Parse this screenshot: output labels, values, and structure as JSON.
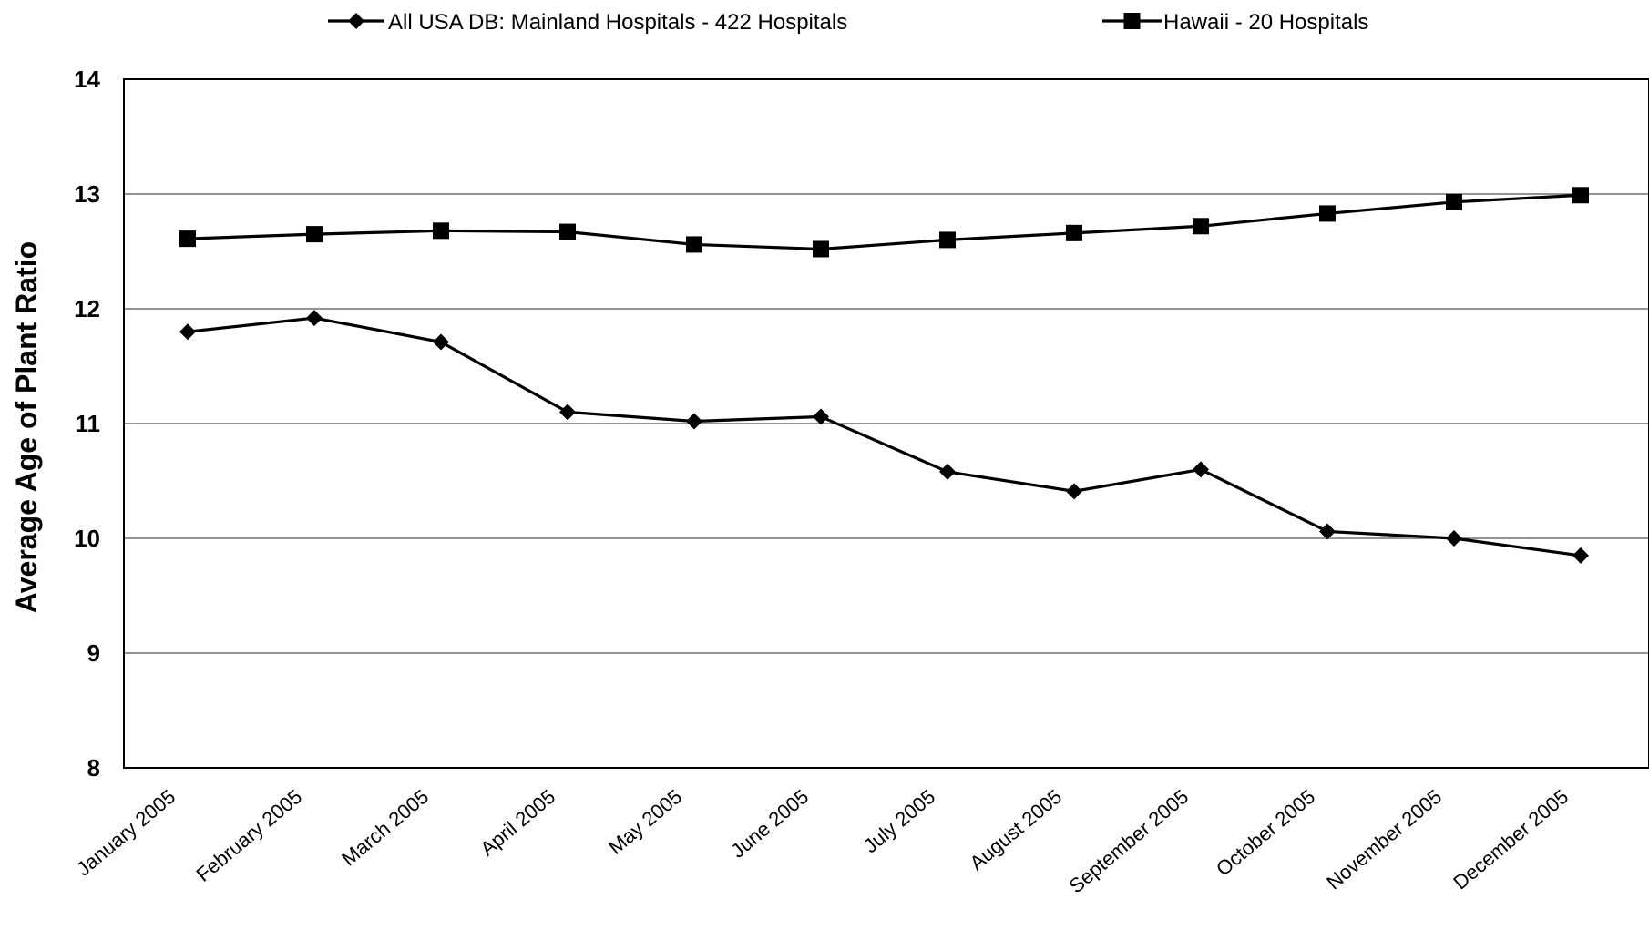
{
  "chart_data": {
    "type": "line",
    "ylabel": "Average Age of Plant Ratio",
    "ylim": [
      8,
      14
    ],
    "yticks": [
      8,
      9,
      10,
      11,
      12,
      13,
      14
    ],
    "grid": true,
    "legend_position": "top",
    "categories": [
      "January 2005",
      "February 2005",
      "March 2005",
      "April 2005",
      "May 2005",
      "June 2005",
      "July 2005",
      "August 2005",
      "September 2005",
      "October 2005",
      "November 2005",
      "December 2005"
    ],
    "series": [
      {
        "name": "All USA DB: Mainland Hospitals - 422 Hospitals",
        "marker": "diamond",
        "color": "#000000",
        "values": [
          11.8,
          11.92,
          11.71,
          11.1,
          11.02,
          11.06,
          10.58,
          10.41,
          10.6,
          10.06,
          10.0,
          9.85
        ]
      },
      {
        "name": "Hawaii - 20 Hospitals",
        "marker": "square",
        "color": "#000000",
        "values": [
          12.61,
          12.65,
          12.68,
          12.67,
          12.56,
          12.52,
          12.6,
          12.66,
          12.72,
          12.83,
          12.93,
          12.99
        ]
      }
    ]
  }
}
